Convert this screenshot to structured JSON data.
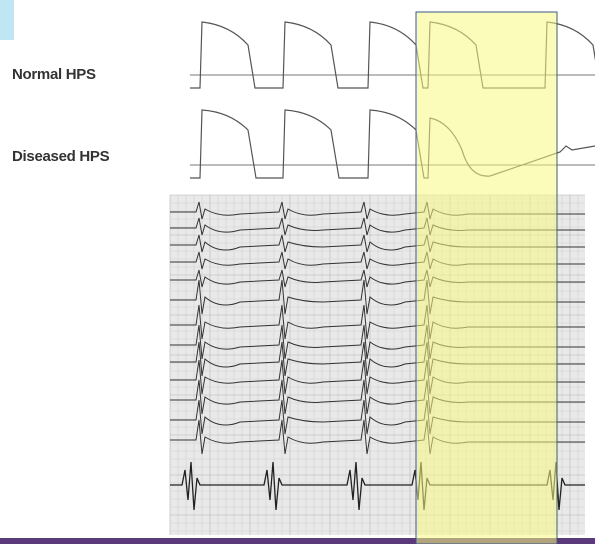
{
  "labels": {
    "normal": "Normal HPS",
    "diseased": "Diseased HPS"
  }
}
